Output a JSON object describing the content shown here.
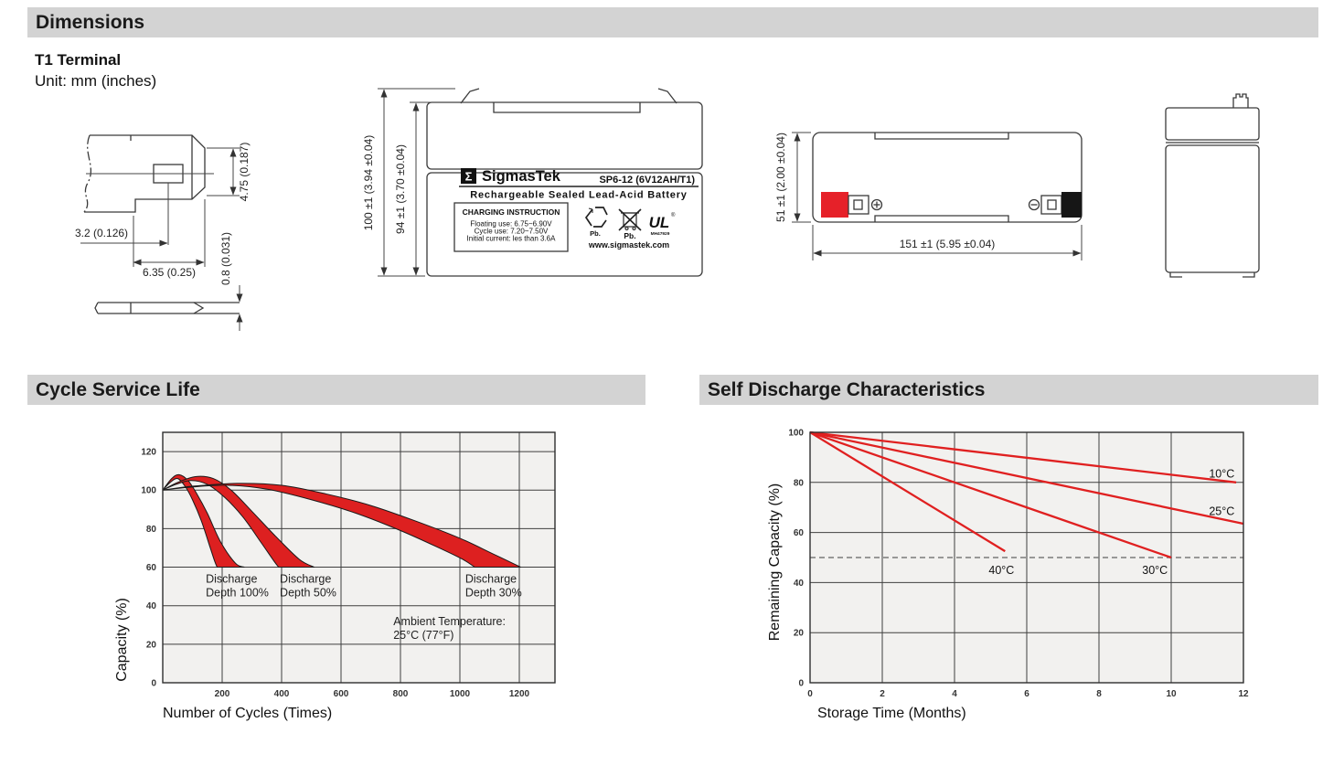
{
  "header": {
    "title": "Dimensions"
  },
  "subheader": {
    "terminal": "T1 Terminal",
    "unit": "Unit: mm (inches)"
  },
  "sections": {
    "cycle": "Cycle Service Life",
    "self_discharge": "Self Discharge Characteristics"
  },
  "terminal_drawing": {
    "dim_width": "3.2 (0.126)",
    "dim_length": "6.35 (0.25)",
    "dim_height": "4.75 (0.187)",
    "dim_thickness": "0.8 (0.031)"
  },
  "front_view": {
    "dim_total_height": "100 ±1 (3.94 ±0.04)",
    "dim_case_height": "94 ±1 (3.70 ±0.04)",
    "brand_sigma": "Σ",
    "brand": "SigmasTek",
    "model": "SP6-12 (6V12AH/T1)",
    "subtitle": "Rechargeable Sealed Lead-Acid Battery",
    "charging_title": "CHARGING INSTRUCTION",
    "charging_line1": "Floating use: 6.75~6.90V",
    "charging_line2": "Cycle use: 7.20~7.50V",
    "charging_line3": "Initial current: les than 3.6A",
    "recycle_pb": "Pb.",
    "trash_pb": "Pb.",
    "ul_text": "UL",
    "ul_reg": "®",
    "ul_code": "MH47929",
    "website": "www.sigmastek.com"
  },
  "top_view": {
    "dim_height": "51 ±1 (2.00 ±0.04)",
    "dim_length": "151 ±1 (5.95 ±0.04)",
    "positive_icon": "⊕",
    "negative_icon": "⊖"
  },
  "colors": {
    "band_red": "#dd2020",
    "line_red": "#e02020",
    "chart_bg": "#f2f1ef",
    "grid": "#3f3f3f",
    "header_bar": "#d3d3d3"
  },
  "chart_data": [
    {
      "type": "area",
      "title": "Cycle Service Life",
      "xlabel": "Number of Cycles (Times)",
      "ylabel": "Capacity (%)",
      "xlim": [
        0,
        1320
      ],
      "ylim": [
        0,
        130
      ],
      "x_ticks": [
        200,
        400,
        600,
        800,
        1000,
        1200
      ],
      "y_ticks": [
        0,
        20,
        40,
        60,
        80,
        100,
        120
      ],
      "x_gridlines": [
        200,
        400,
        600,
        800,
        1000,
        1200
      ],
      "y_gridlines": [
        20,
        40,
        60,
        80,
        100,
        120
      ],
      "grid": true,
      "legend_position": "none",
      "band_color": "#dd2020",
      "bands": [
        {
          "name": "Discharge Depth 100%",
          "upper": [
            [
              0,
              100
            ],
            [
              30,
              106
            ],
            [
              55,
              108
            ],
            [
              85,
              105
            ],
            [
              115,
              98
            ],
            [
              150,
              88
            ],
            [
              195,
              73
            ],
            [
              245,
              62
            ],
            [
              275,
              60
            ]
          ],
          "lower": [
            [
              0,
              100
            ],
            [
              25,
              104
            ],
            [
              50,
              106
            ],
            [
              75,
              102
            ],
            [
              100,
              95
            ],
            [
              130,
              84
            ],
            [
              160,
              70
            ],
            [
              175,
              63
            ],
            [
              183,
              60
            ]
          ]
        },
        {
          "name": "Discharge Depth 50%",
          "upper": [
            [
              0,
              100
            ],
            [
              50,
              104
            ],
            [
              110,
              107
            ],
            [
              170,
              106
            ],
            [
              230,
              100
            ],
            [
              300,
              89
            ],
            [
              380,
              76
            ],
            [
              460,
              64
            ],
            [
              510,
              60
            ]
          ],
          "lower": [
            [
              0,
              100
            ],
            [
              45,
              103
            ],
            [
              95,
              105
            ],
            [
              150,
              103
            ],
            [
              210,
              96
            ],
            [
              270,
              86
            ],
            [
              330,
              73
            ],
            [
              375,
              63
            ],
            [
              390,
              60
            ]
          ]
        },
        {
          "name": "Discharge Depth 30%",
          "upper": [
            [
              0,
              100
            ],
            [
              100,
              102
            ],
            [
              250,
              103.5
            ],
            [
              400,
              102.5
            ],
            [
              550,
              98
            ],
            [
              700,
              92
            ],
            [
              850,
              84
            ],
            [
              1000,
              75
            ],
            [
              1110,
              67
            ],
            [
              1205,
              60
            ]
          ],
          "lower": [
            [
              0,
              100
            ],
            [
              90,
              101.5
            ],
            [
              220,
              102.5
            ],
            [
              350,
              100.5
            ],
            [
              500,
              95
            ],
            [
              650,
              88
            ],
            [
              800,
              79
            ],
            [
              930,
              70
            ],
            [
              1010,
              64
            ],
            [
              1050,
              60
            ]
          ]
        }
      ],
      "annotations": [
        {
          "x": 145,
          "y": 52,
          "lines": [
            "Discharge",
            "Depth 100%"
          ]
        },
        {
          "x": 394,
          "y": 52,
          "lines": [
            "Discharge",
            "Depth 50%"
          ]
        },
        {
          "x": 1018,
          "y": 52,
          "lines": [
            "Discharge",
            "Depth 30%"
          ]
        },
        {
          "x": 776,
          "y": 30,
          "lines": [
            "Ambient Temperature:",
            "25°C (77°F)"
          ]
        }
      ]
    },
    {
      "type": "line",
      "title": "Self Discharge Characteristics",
      "xlabel": "Storage Time (Months)",
      "ylabel": "Remaining Capacity (%)",
      "xlim": [
        0,
        12
      ],
      "ylim": [
        0,
        100
      ],
      "x_ticks": [
        0,
        2,
        4,
        6,
        8,
        10,
        12
      ],
      "y_ticks": [
        0,
        20,
        40,
        60,
        80,
        100
      ],
      "x_gridlines": [
        2,
        4,
        6,
        8,
        10
      ],
      "y_gridlines": [
        20,
        40,
        60,
        80
      ],
      "grid": true,
      "legend_position": "inline-labels",
      "line_color": "#e02020",
      "dashed_line_y": 50,
      "series": [
        {
          "name": "10°C",
          "points": [
            [
              0,
              100
            ],
            [
              11.8,
              80
            ]
          ],
          "label_x": 11.4,
          "label_y": 82
        },
        {
          "name": "25°C",
          "points": [
            [
              0,
              100
            ],
            [
              12,
              63.5
            ]
          ],
          "label_x": 11.4,
          "label_y": 67
        },
        {
          "name": "30°C",
          "points": [
            [
              0,
              100
            ],
            [
              10,
              50
            ]
          ],
          "label_x": 9.55,
          "label_y": 43.5
        },
        {
          "name": "40°C",
          "points": [
            [
              0,
              100
            ],
            [
              5.4,
              52.5
            ]
          ],
          "label_x": 5.3,
          "label_y": 43.5
        }
      ]
    }
  ]
}
